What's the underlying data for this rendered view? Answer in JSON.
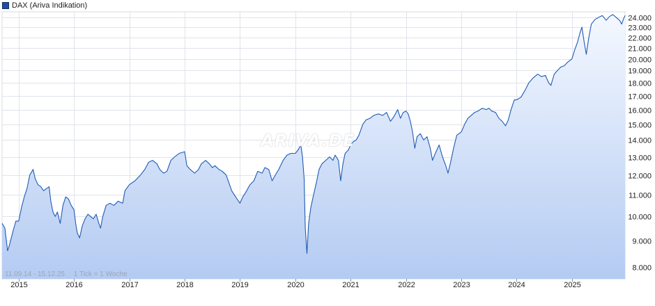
{
  "chart_data": {
    "type": "area",
    "legend": {
      "label": "DAX (Ariva Indikation)",
      "placement": "top-left",
      "color": "#1f4e9b"
    },
    "watermark": "ARIVA.DE",
    "date_range": "11.09.14 - 15.12.25",
    "tick_info": "1 Tick = 1 Woche",
    "x_tick_labels": [
      "2015",
      "2016",
      "2017",
      "2018",
      "2019",
      "2020",
      "2021",
      "2022",
      "2023",
      "2024",
      "2025"
    ],
    "y_tick_labels": [
      "8.000",
      "9.000",
      "10.000",
      "11.000",
      "12.000",
      "13.000",
      "14.000",
      "15.000",
      "16.000",
      "17.000",
      "18.000",
      "19.000",
      "20.000",
      "21.000",
      "22.000",
      "23.000",
      "24.000"
    ],
    "y_ticks": [
      8000,
      9000,
      10000,
      11000,
      12000,
      13000,
      14000,
      15000,
      16000,
      17000,
      18000,
      19000,
      20000,
      21000,
      22000,
      23000,
      24000
    ],
    "ylim": [
      7600,
      24600
    ],
    "y_scale": "log",
    "xlim": [
      2014.7,
      2025.96
    ],
    "grid": true,
    "line_color": "#1f5bb5",
    "fill_top_color": "#f4f8ff",
    "fill_bottom_color": "#b4cbf2",
    "series": [
      {
        "points": [
          [
            2014.7,
            9700
          ],
          [
            2014.75,
            9500
          ],
          [
            2014.8,
            8600
          ],
          [
            2014.83,
            8800
          ],
          [
            2014.9,
            9400
          ],
          [
            2014.95,
            9800
          ],
          [
            2015.0,
            9800
          ],
          [
            2015.05,
            10400
          ],
          [
            2015.1,
            10900
          ],
          [
            2015.15,
            11300
          ],
          [
            2015.2,
            12000
          ],
          [
            2015.26,
            12300
          ],
          [
            2015.3,
            11800
          ],
          [
            2015.35,
            11500
          ],
          [
            2015.4,
            11400
          ],
          [
            2015.45,
            11200
          ],
          [
            2015.5,
            11300
          ],
          [
            2015.55,
            11400
          ],
          [
            2015.58,
            10700
          ],
          [
            2015.62,
            10200
          ],
          [
            2015.66,
            10000
          ],
          [
            2015.7,
            10200
          ],
          [
            2015.75,
            9700
          ],
          [
            2015.8,
            10500
          ],
          [
            2015.85,
            10900
          ],
          [
            2015.9,
            10800
          ],
          [
            2015.95,
            10500
          ],
          [
            2016.0,
            10300
          ],
          [
            2016.03,
            9700
          ],
          [
            2016.06,
            9300
          ],
          [
            2016.1,
            9100
          ],
          [
            2016.15,
            9600
          ],
          [
            2016.2,
            9900
          ],
          [
            2016.25,
            10100
          ],
          [
            2016.3,
            10000
          ],
          [
            2016.35,
            9900
          ],
          [
            2016.4,
            10100
          ],
          [
            2016.45,
            9700
          ],
          [
            2016.48,
            9500
          ],
          [
            2016.52,
            10000
          ],
          [
            2016.58,
            10500
          ],
          [
            2016.65,
            10600
          ],
          [
            2016.72,
            10500
          ],
          [
            2016.8,
            10700
          ],
          [
            2016.88,
            10600
          ],
          [
            2016.92,
            11200
          ],
          [
            2017.0,
            11500
          ],
          [
            2017.1,
            11700
          ],
          [
            2017.2,
            12000
          ],
          [
            2017.28,
            12300
          ],
          [
            2017.35,
            12700
          ],
          [
            2017.42,
            12800
          ],
          [
            2017.5,
            12600
          ],
          [
            2017.55,
            12300
          ],
          [
            2017.62,
            12100
          ],
          [
            2017.68,
            12200
          ],
          [
            2017.75,
            12800
          ],
          [
            2017.82,
            13000
          ],
          [
            2017.9,
            13200
          ],
          [
            2018.0,
            13300
          ],
          [
            2018.04,
            12500
          ],
          [
            2018.1,
            12300
          ],
          [
            2018.18,
            12100
          ],
          [
            2018.25,
            12300
          ],
          [
            2018.3,
            12600
          ],
          [
            2018.38,
            12800
          ],
          [
            2018.45,
            12600
          ],
          [
            2018.5,
            12400
          ],
          [
            2018.55,
            12500
          ],
          [
            2018.62,
            12300
          ],
          [
            2018.68,
            12200
          ],
          [
            2018.75,
            12000
          ],
          [
            2018.8,
            11600
          ],
          [
            2018.85,
            11200
          ],
          [
            2018.92,
            10900
          ],
          [
            2019.0,
            10600
          ],
          [
            2019.05,
            10900
          ],
          [
            2019.1,
            11100
          ],
          [
            2019.18,
            11500
          ],
          [
            2019.25,
            11700
          ],
          [
            2019.32,
            12200
          ],
          [
            2019.4,
            12100
          ],
          [
            2019.45,
            12400
          ],
          [
            2019.52,
            12300
          ],
          [
            2019.58,
            11700
          ],
          [
            2019.62,
            11900
          ],
          [
            2019.7,
            12300
          ],
          [
            2019.78,
            12800
          ],
          [
            2019.85,
            13100
          ],
          [
            2019.92,
            13200
          ],
          [
            2020.0,
            13200
          ],
          [
            2020.05,
            13400
          ],
          [
            2020.1,
            13700
          ],
          [
            2020.13,
            13000
          ],
          [
            2020.16,
            11800
          ],
          [
            2020.18,
            9500
          ],
          [
            2020.21,
            8500
          ],
          [
            2020.24,
            9700
          ],
          [
            2020.28,
            10400
          ],
          [
            2020.33,
            11000
          ],
          [
            2020.38,
            11600
          ],
          [
            2020.43,
            12300
          ],
          [
            2020.48,
            12600
          ],
          [
            2020.55,
            12800
          ],
          [
            2020.62,
            13000
          ],
          [
            2020.68,
            12800
          ],
          [
            2020.72,
            13100
          ],
          [
            2020.78,
            12800
          ],
          [
            2020.82,
            11700
          ],
          [
            2020.86,
            12600
          ],
          [
            2020.9,
            13200
          ],
          [
            2020.96,
            13400
          ],
          [
            2021.0,
            13700
          ],
          [
            2021.05,
            13900
          ],
          [
            2021.1,
            14000
          ],
          [
            2021.15,
            14300
          ],
          [
            2021.22,
            15000
          ],
          [
            2021.28,
            15300
          ],
          [
            2021.35,
            15400
          ],
          [
            2021.42,
            15600
          ],
          [
            2021.5,
            15700
          ],
          [
            2021.58,
            15600
          ],
          [
            2021.65,
            15800
          ],
          [
            2021.72,
            15200
          ],
          [
            2021.78,
            15500
          ],
          [
            2021.85,
            16000
          ],
          [
            2021.9,
            15400
          ],
          [
            2021.95,
            15800
          ],
          [
            2022.0,
            15900
          ],
          [
            2022.04,
            15700
          ],
          [
            2022.08,
            15200
          ],
          [
            2022.12,
            14500
          ],
          [
            2022.16,
            13500
          ],
          [
            2022.2,
            14200
          ],
          [
            2022.26,
            14400
          ],
          [
            2022.32,
            14000
          ],
          [
            2022.38,
            14200
          ],
          [
            2022.44,
            13500
          ],
          [
            2022.48,
            12800
          ],
          [
            2022.53,
            13200
          ],
          [
            2022.6,
            13700
          ],
          [
            2022.66,
            13000
          ],
          [
            2022.72,
            12500
          ],
          [
            2022.76,
            12100
          ],
          [
            2022.8,
            12600
          ],
          [
            2022.86,
            13500
          ],
          [
            2022.92,
            14300
          ],
          [
            2023.0,
            14500
          ],
          [
            2023.06,
            15000
          ],
          [
            2023.12,
            15400
          ],
          [
            2023.18,
            15600
          ],
          [
            2023.24,
            15800
          ],
          [
            2023.3,
            15900
          ],
          [
            2023.38,
            16100
          ],
          [
            2023.45,
            16000
          ],
          [
            2023.5,
            16100
          ],
          [
            2023.55,
            15900
          ],
          [
            2023.62,
            15800
          ],
          [
            2023.68,
            15400
          ],
          [
            2023.74,
            15200
          ],
          [
            2023.8,
            14900
          ],
          [
            2023.85,
            15300
          ],
          [
            2023.9,
            16000
          ],
          [
            2023.96,
            16700
          ],
          [
            2024.0,
            16700
          ],
          [
            2024.08,
            16900
          ],
          [
            2024.15,
            17400
          ],
          [
            2024.22,
            18000
          ],
          [
            2024.3,
            18400
          ],
          [
            2024.38,
            18700
          ],
          [
            2024.45,
            18500
          ],
          [
            2024.52,
            18600
          ],
          [
            2024.58,
            18000
          ],
          [
            2024.62,
            17800
          ],
          [
            2024.68,
            18700
          ],
          [
            2024.74,
            19000
          ],
          [
            2024.8,
            19300
          ],
          [
            2024.86,
            19400
          ],
          [
            2024.92,
            19700
          ],
          [
            2025.0,
            20000
          ],
          [
            2025.05,
            20800
          ],
          [
            2025.1,
            21500
          ],
          [
            2025.15,
            22500
          ],
          [
            2025.18,
            23000
          ],
          [
            2025.22,
            21600
          ],
          [
            2025.26,
            20400
          ],
          [
            2025.3,
            21800
          ],
          [
            2025.35,
            23300
          ],
          [
            2025.42,
            23800
          ],
          [
            2025.48,
            24000
          ],
          [
            2025.55,
            24200
          ],
          [
            2025.62,
            23700
          ],
          [
            2025.68,
            24100
          ],
          [
            2025.74,
            24300
          ],
          [
            2025.8,
            24000
          ],
          [
            2025.86,
            23700
          ],
          [
            2025.9,
            23300
          ],
          [
            2025.93,
            23800
          ],
          [
            2025.96,
            24200
          ]
        ]
      }
    ]
  }
}
